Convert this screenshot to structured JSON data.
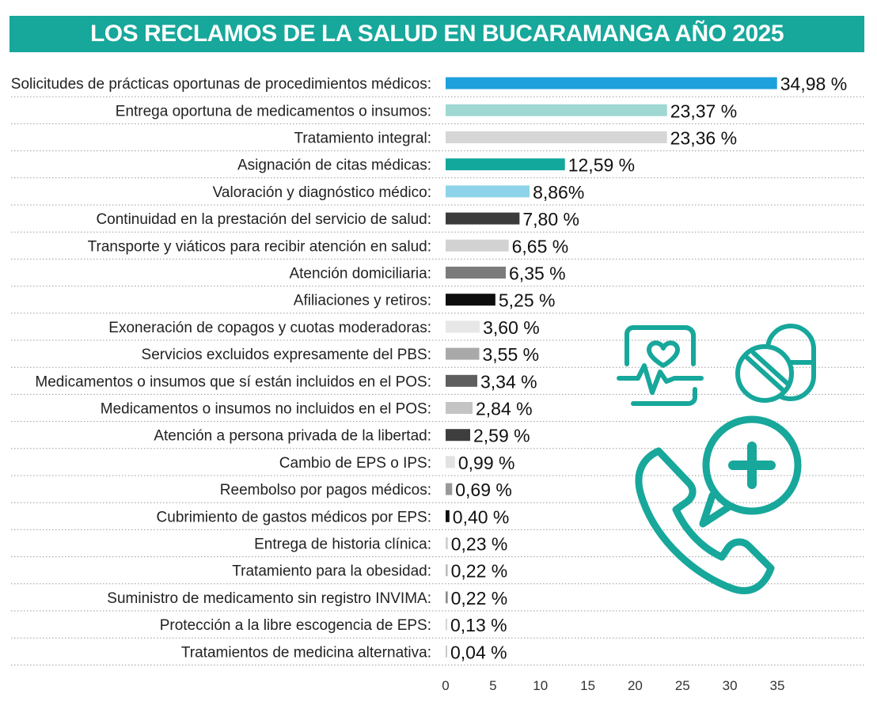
{
  "header": {
    "title": "LOS RECLAMOS DE LA SALUD EN BUCARAMANGA AÑO 2025"
  },
  "icons": [
    "heart-monitor-icon",
    "pill-capsule-icon",
    "phone-medical-icon"
  ],
  "chart_data": {
    "type": "bar",
    "orientation": "horizontal",
    "title": "LOS RECLAMOS DE LA SALUD EN BUCARAMANGA AÑO 2025",
    "xlabel": "",
    "ylabel": "",
    "xlim": [
      0,
      35
    ],
    "xticks": [
      0,
      5,
      10,
      15,
      20,
      25,
      30,
      35
    ],
    "grid": false,
    "categories": [
      "Solicitudes de prácticas oportunas de procedimientos médicos:",
      "Entrega oportuna de medicamentos o insumos:",
      "Tratamiento integral:",
      "Asignación de citas médicas:",
      "Valoración y diagnóstico médico:",
      "Continuidad en la prestación del servicio de salud:",
      "Transporte y viáticos para recibir atención en salud:",
      "Atención domiciliaria:",
      "Afiliaciones y retiros:",
      "Exoneración de copagos y cuotas moderadoras:",
      "Servicios excluidos expresamente del PBS:",
      "Medicamentos o insumos que sí están incluidos en el POS:",
      "Medicamentos o insumos no incluidos en el POS:",
      "Atención a persona privada de la libertad:",
      "Cambio de EPS o IPS:",
      "Reembolso por pagos médicos:",
      "Cubrimiento de gastos médicos por EPS:",
      "Entrega de historia clínica:",
      "Tratamiento para la obesidad:",
      "Suministro de medicamento sin registro INVIMA:",
      "Protección a la libre escogencia de EPS:",
      "Tratamientos de medicina alternativa:"
    ],
    "values": [
      34.98,
      23.37,
      23.36,
      12.59,
      8.86,
      7.8,
      6.65,
      6.35,
      5.25,
      3.6,
      3.55,
      3.34,
      2.84,
      2.59,
      0.99,
      0.69,
      0.4,
      0.23,
      0.22,
      0.22,
      0.13,
      0.04
    ],
    "value_labels": [
      "34,98 %",
      "23,37 %",
      "23,36 %",
      "12,59 %",
      "8,86%",
      "7,80 %",
      "6,65 %",
      "6,35 %",
      "5,25 %",
      "3,60 %",
      "3,55 %",
      "3,34 %",
      "2,84 %",
      "2,59 %",
      "0,99 %",
      "0,69 %",
      "0,40 %",
      "0,23 %",
      "0,22 %",
      "0,22 %",
      "0,13 %",
      "0,04 %"
    ],
    "colors": [
      "#1ea0dc",
      "#9fd8d2",
      "#d6d6d6",
      "#12a89c",
      "#8dd3ea",
      "#3b3b3b",
      "#d2d2d2",
      "#7b7b7b",
      "#0d0d0d",
      "#e7e7e7",
      "#a9a9a9",
      "#5e5e5e",
      "#c4c4c4",
      "#3e3e3e",
      "#e2e2e2",
      "#999999",
      "#0d0d0d",
      "#cfcfcf",
      "#bcbcbc",
      "#8a8a8a",
      "#d5d5d5",
      "#c8c8c8"
    ]
  },
  "accent_color": "#17a79b"
}
